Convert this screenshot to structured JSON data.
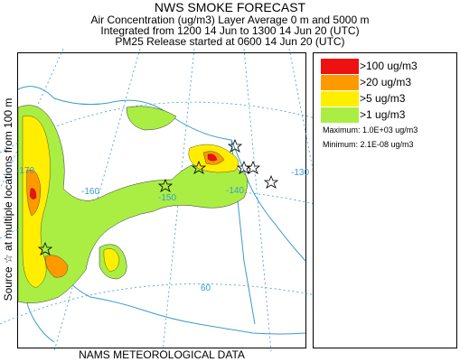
{
  "title": "NWS SMOKE FORECAST",
  "subtitle1": "Air Concentration (ug/m3) Layer Average    0 m and  5000 m",
  "subtitle2": "Integrated from 1200 14 Jun to 1300 14 Jun 20 (UTC)",
  "subtitle3": "PM25 Release started at 0600 14 Jun 20 (UTC)",
  "side_label": "Source ☆  at multiple locations   from   100 m",
  "bottom_label": "NAMS METEOROLOGICAL DATA",
  "legend": {
    "items": [
      {
        "label": ">100 ug/m3",
        "color": "#ee1111"
      },
      {
        "label": ">20 ug/m3",
        "color": "#ff9900"
      },
      {
        "label": ">5 ug/m3",
        "color": "#ffee00"
      },
      {
        "label": ">1 ug/m3",
        "color": "#aaee44"
      }
    ],
    "maximum": "Maximum: 1.0E+03 ug/m3",
    "minimum": "Minimum: 2.1E-08 ug/m3"
  },
  "map": {
    "grid_labels": [
      "-170",
      "-160",
      "-150",
      "-140",
      "-130",
      "60"
    ],
    "graticule_color": "#3a9bd0",
    "coast_color": "#3a9bd0",
    "marker_icon": "star-icon"
  }
}
